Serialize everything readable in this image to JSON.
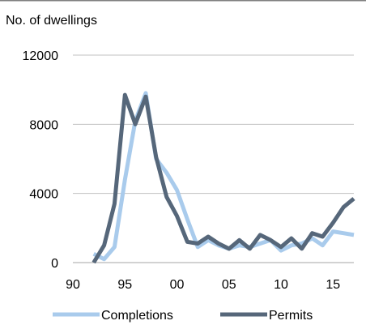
{
  "chart_data": {
    "type": "line",
    "ylabel": "No. of dwellings",
    "xlabel": "",
    "title": "",
    "ylim": [
      0,
      12000
    ],
    "xlim": [
      1990,
      2017
    ],
    "yticks": [
      0,
      4000,
      8000,
      12000
    ],
    "ytick_labels": [
      "0",
      "4000",
      "8000",
      "12000"
    ],
    "xticks": [
      1990,
      1995,
      2000,
      2005,
      2010,
      2015
    ],
    "xtick_labels": [
      "90",
      "95",
      "00",
      "05",
      "10",
      "15"
    ],
    "grid": "horizontal",
    "legend_position": "bottom",
    "series": [
      {
        "name": "Completions",
        "color": "#a9cbec",
        "x": [
          1992,
          1993,
          1994,
          1995,
          1996,
          1997,
          1998,
          1999,
          2000,
          2001,
          2002,
          2003,
          2004,
          2005,
          2006,
          2007,
          2008,
          2009,
          2010,
          2011,
          2012,
          2013,
          2014,
          2015,
          2016,
          2017
        ],
        "values": [
          500,
          200,
          900,
          4800,
          8200,
          9800,
          6000,
          5200,
          4200,
          2500,
          900,
          1300,
          1000,
          800,
          1000,
          900,
          1100,
          1300,
          700,
          1000,
          1100,
          1400,
          1000,
          1800,
          1700,
          1600
        ]
      },
      {
        "name": "Permits",
        "color": "#56677a",
        "x": [
          1992,
          1993,
          1994,
          1995,
          1996,
          1997,
          1998,
          1999,
          2000,
          2001,
          2002,
          2003,
          2004,
          2005,
          2006,
          2007,
          2008,
          2009,
          2010,
          2011,
          2012,
          2013,
          2014,
          2015,
          2016,
          2017
        ],
        "values": [
          0,
          1000,
          3400,
          9700,
          8000,
          9600,
          6100,
          3800,
          2700,
          1200,
          1100,
          1500,
          1100,
          800,
          1300,
          800,
          1600,
          1300,
          900,
          1400,
          800,
          1700,
          1500,
          2300,
          3200,
          3700
        ]
      }
    ]
  },
  "colors": {
    "top_rule": "#808080",
    "grid": "#c0c0c0",
    "axis": "#a6a6a6"
  }
}
